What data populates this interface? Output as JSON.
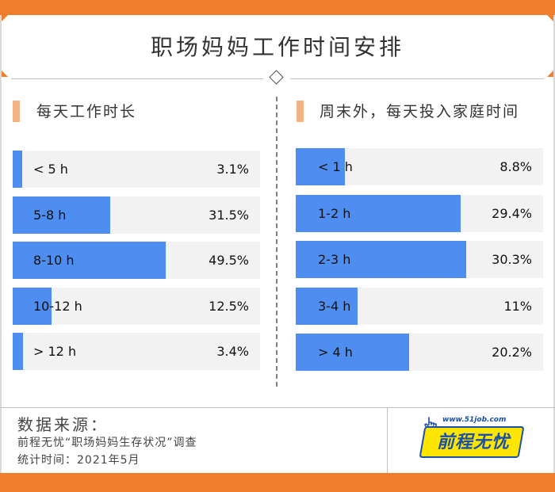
{
  "title": "职场妈妈工作时间安排",
  "colors": {
    "accent": "#f07d2c",
    "bar": "#4d8ef0",
    "track": "#f2f2f2",
    "marker": "#f4b183"
  },
  "chart_data": [
    {
      "type": "bar",
      "orientation": "horizontal",
      "title": "每天工作时长",
      "categories": [
        "< 5 h",
        "5-8 h",
        "8-10 h",
        "10-12 h",
        "> 12 h"
      ],
      "values": [
        3.1,
        31.5,
        49.5,
        12.5,
        3.4
      ],
      "labels": [
        "3.1%",
        "31.5%",
        "49.5%",
        "12.5%",
        "3.4%"
      ],
      "unit": "%",
      "xlim": [
        0,
        80
      ]
    },
    {
      "type": "bar",
      "orientation": "horizontal",
      "title": "周末外，每天投入家庭时间",
      "categories": [
        "< 1 h",
        "1-2 h",
        "2-3 h",
        "3-4 h",
        "> 4 h"
      ],
      "values": [
        8.8,
        29.4,
        30.3,
        11,
        20.2
      ],
      "labels": [
        "8.8%",
        "29.4%",
        "30.3%",
        "11%",
        "20.2%"
      ],
      "unit": "%",
      "xlim": [
        0,
        44
      ]
    }
  ],
  "footer": {
    "heading": "数据来源：",
    "line1": "前程无忧“职场妈妈生存状况”调查",
    "line2": "统计时间：2021年5月"
  },
  "logo": {
    "url": "www.51job.com",
    "name": "前程无忧",
    "icon": "hand-cursor-icon"
  }
}
